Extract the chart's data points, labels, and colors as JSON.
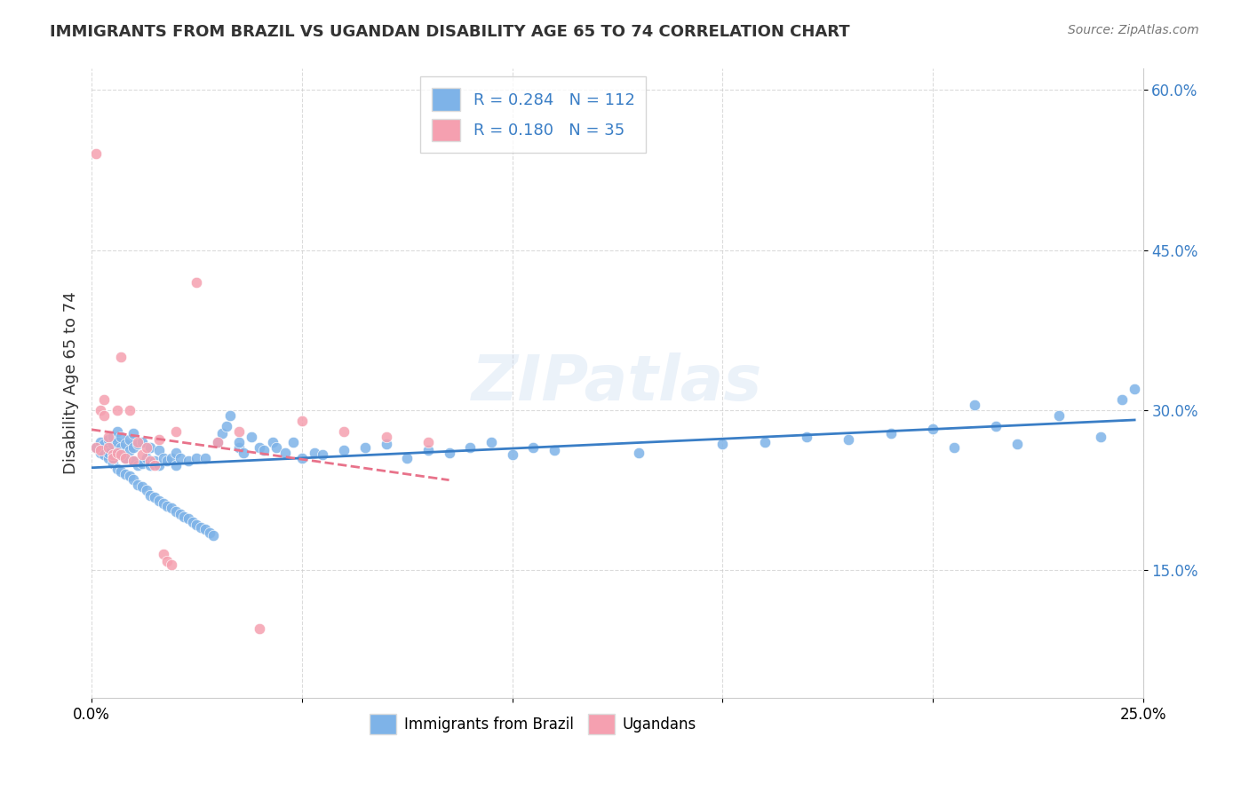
{
  "title": "IMMIGRANTS FROM BRAZIL VS UGANDAN DISABILITY AGE 65 TO 74 CORRELATION CHART",
  "source": "Source: ZipAtlas.com",
  "xlabel_bottom": "",
  "ylabel": "Disability Age 65 to 74",
  "xmin": 0.0,
  "xmax": 0.25,
  "ymin": 0.03,
  "ymax": 0.62,
  "yticks": [
    0.15,
    0.3,
    0.45,
    0.6
  ],
  "ytick_labels": [
    "15.0%",
    "30.0%",
    "45.0%",
    "60.0%"
  ],
  "xticks": [
    0.0,
    0.05,
    0.1,
    0.15,
    0.2,
    0.25
  ],
  "xtick_labels": [
    "0.0%",
    "",
    "",
    "",
    "",
    "25.0%"
  ],
  "legend_r1": "R = 0.284   N = 112",
  "legend_r2": "R = 0.180   N = 35",
  "blue_color": "#7EB3E8",
  "pink_color": "#F5A0B0",
  "line_blue": "#3A7EC6",
  "line_pink": "#E8728A",
  "watermark": "ZIPatlas",
  "brazil_scatter_x": [
    0.001,
    0.002,
    0.002,
    0.003,
    0.003,
    0.003,
    0.004,
    0.004,
    0.004,
    0.005,
    0.005,
    0.005,
    0.005,
    0.006,
    0.006,
    0.006,
    0.006,
    0.007,
    0.007,
    0.007,
    0.007,
    0.008,
    0.008,
    0.008,
    0.009,
    0.009,
    0.009,
    0.01,
    0.01,
    0.01,
    0.01,
    0.011,
    0.011,
    0.011,
    0.012,
    0.012,
    0.012,
    0.013,
    0.013,
    0.014,
    0.014,
    0.014,
    0.015,
    0.015,
    0.016,
    0.016,
    0.016,
    0.017,
    0.017,
    0.018,
    0.018,
    0.019,
    0.019,
    0.02,
    0.02,
    0.02,
    0.021,
    0.021,
    0.022,
    0.023,
    0.023,
    0.024,
    0.025,
    0.025,
    0.026,
    0.027,
    0.027,
    0.028,
    0.029,
    0.03,
    0.031,
    0.032,
    0.033,
    0.035,
    0.035,
    0.036,
    0.038,
    0.04,
    0.041,
    0.043,
    0.044,
    0.046,
    0.048,
    0.05,
    0.053,
    0.055,
    0.06,
    0.065,
    0.07,
    0.075,
    0.08,
    0.085,
    0.09,
    0.095,
    0.1,
    0.105,
    0.11,
    0.13,
    0.15,
    0.16,
    0.17,
    0.18,
    0.19,
    0.2,
    0.205,
    0.21,
    0.215,
    0.22,
    0.23,
    0.24,
    0.245,
    0.248
  ],
  "brazil_scatter_y": [
    0.265,
    0.26,
    0.27,
    0.262,
    0.258,
    0.268,
    0.255,
    0.26,
    0.272,
    0.25,
    0.258,
    0.268,
    0.275,
    0.245,
    0.26,
    0.27,
    0.28,
    0.242,
    0.258,
    0.265,
    0.275,
    0.24,
    0.255,
    0.268,
    0.238,
    0.262,
    0.272,
    0.235,
    0.252,
    0.265,
    0.278,
    0.23,
    0.248,
    0.268,
    0.228,
    0.25,
    0.27,
    0.225,
    0.255,
    0.22,
    0.248,
    0.265,
    0.218,
    0.252,
    0.215,
    0.248,
    0.262,
    0.212,
    0.255,
    0.21,
    0.252,
    0.208,
    0.255,
    0.205,
    0.248,
    0.26,
    0.202,
    0.255,
    0.2,
    0.198,
    0.252,
    0.195,
    0.192,
    0.255,
    0.19,
    0.188,
    0.255,
    0.185,
    0.182,
    0.27,
    0.278,
    0.285,
    0.295,
    0.265,
    0.27,
    0.26,
    0.275,
    0.265,
    0.262,
    0.27,
    0.265,
    0.26,
    0.27,
    0.255,
    0.26,
    0.258,
    0.262,
    0.265,
    0.268,
    0.255,
    0.262,
    0.26,
    0.265,
    0.27,
    0.258,
    0.265,
    0.262,
    0.26,
    0.268,
    0.27,
    0.275,
    0.272,
    0.278,
    0.282,
    0.265,
    0.305,
    0.285,
    0.268,
    0.295,
    0.275,
    0.31,
    0.32
  ],
  "uganda_scatter_x": [
    0.001,
    0.001,
    0.002,
    0.002,
    0.003,
    0.003,
    0.004,
    0.004,
    0.005,
    0.005,
    0.006,
    0.006,
    0.007,
    0.007,
    0.008,
    0.009,
    0.01,
    0.011,
    0.012,
    0.013,
    0.014,
    0.015,
    0.016,
    0.017,
    0.018,
    0.019,
    0.02,
    0.025,
    0.03,
    0.035,
    0.04,
    0.05,
    0.06,
    0.07,
    0.08
  ],
  "uganda_scatter_y": [
    0.265,
    0.54,
    0.262,
    0.3,
    0.31,
    0.295,
    0.275,
    0.265,
    0.258,
    0.255,
    0.3,
    0.26,
    0.258,
    0.35,
    0.255,
    0.3,
    0.252,
    0.27,
    0.258,
    0.265,
    0.252,
    0.248,
    0.272,
    0.165,
    0.158,
    0.155,
    0.28,
    0.42,
    0.27,
    0.28,
    0.095,
    0.29,
    0.28,
    0.275,
    0.27
  ]
}
